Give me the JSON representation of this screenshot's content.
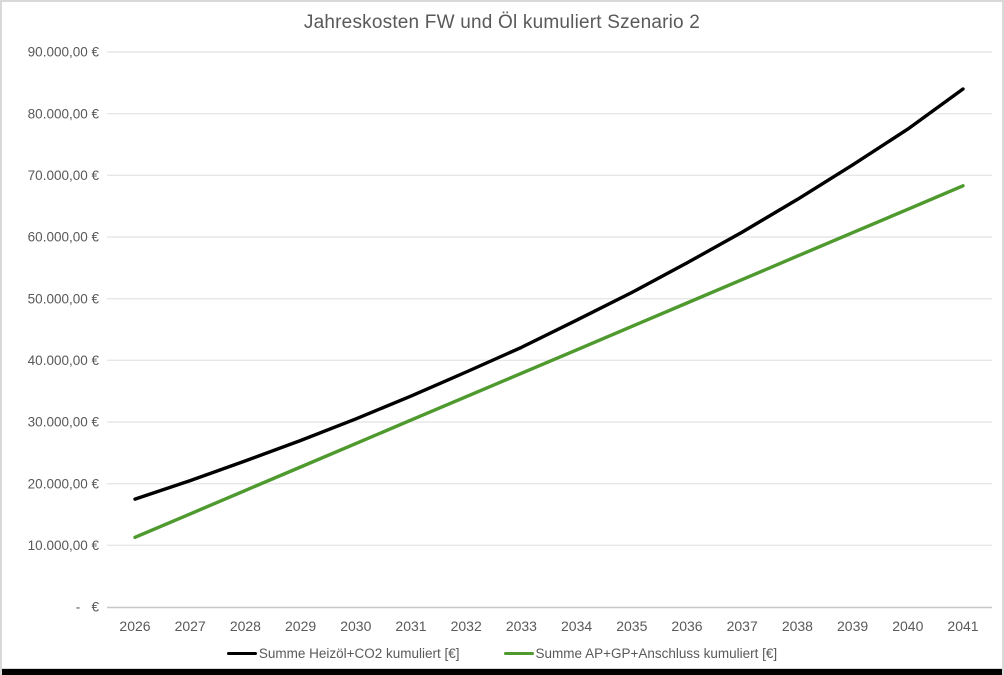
{
  "chart_data": {
    "type": "line",
    "title": "Jahreskosten FW und Öl kumuliert Szenario 2",
    "xlabel": "",
    "ylabel": "",
    "x": [
      2026,
      2027,
      2028,
      2029,
      2030,
      2031,
      2032,
      2033,
      2034,
      2035,
      2036,
      2037,
      2038,
      2039,
      2040,
      2041
    ],
    "series": [
      {
        "name": "Summe Heizöl+CO2 kumuliert  [€]",
        "color": "#000000",
        "values": [
          17500,
          20500,
          23700,
          27000,
          30500,
          34200,
          38100,
          42100,
          46500,
          51000,
          55800,
          60800,
          66100,
          71700,
          77500,
          84000
        ]
      },
      {
        "name": "Summe AP+GP+Anschluss kumuliert  [€]",
        "color": "#4E9A2E",
        "values": [
          11300,
          15100,
          18900,
          22700,
          26500,
          30300,
          34100,
          37900,
          41700,
          45500,
          49300,
          53100,
          56900,
          60700,
          64500,
          68300
        ]
      }
    ],
    "ylim": [
      0,
      90000
    ],
    "y_ticks": [
      0,
      10000,
      20000,
      30000,
      40000,
      50000,
      60000,
      70000,
      80000,
      90000
    ],
    "y_tick_labels": [
      "-   €",
      "10.000,00 €",
      "20.000,00 €",
      "30.000,00 €",
      "40.000,00 €",
      "50.000,00 €",
      "60.000,00 €",
      "70.000,00 €",
      "80.000,00 €",
      "90.000,00 €"
    ],
    "grid": true,
    "legend_position": "bottom"
  },
  "colors": {
    "gridline": "#E7E7E7",
    "axis_line": "#C8C8C8",
    "text": "#595959",
    "frame_border": "#D9D9D9",
    "bottom_bar": "#000000"
  }
}
